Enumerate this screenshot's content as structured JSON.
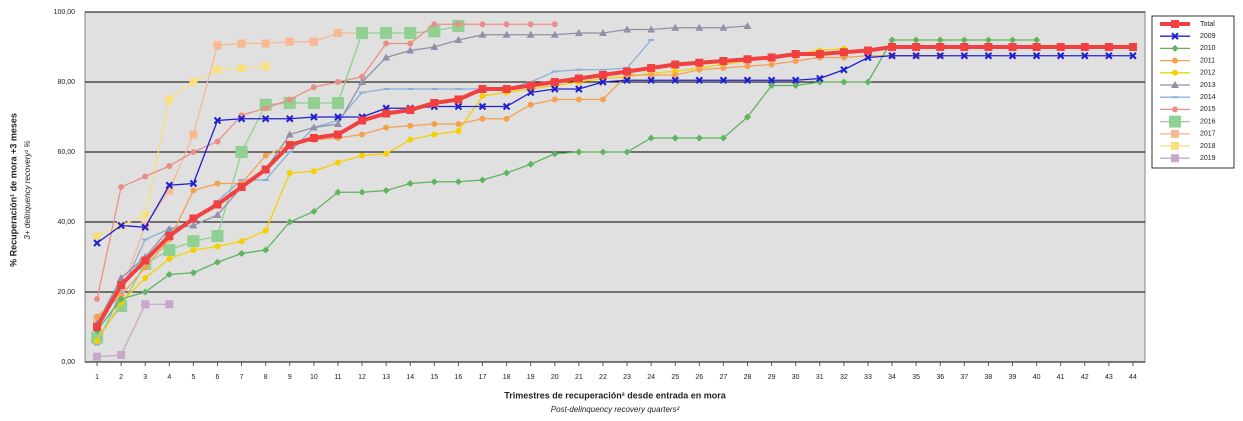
{
  "chart_data": {
    "type": "line",
    "y_label": "% Recuperación¹ de mora +3 meses",
    "y_sublabel": "3+ delinquency recovery¹ %",
    "x_label": "Trimestres de recuperación² desde entrada en mora",
    "x_sublabel": "Post-delinquency recovery quarters²",
    "x": [
      1,
      2,
      3,
      4,
      5,
      6,
      7,
      8,
      9,
      10,
      11,
      12,
      13,
      14,
      15,
      16,
      17,
      18,
      19,
      20,
      21,
      22,
      23,
      24,
      25,
      26,
      27,
      28,
      29,
      30,
      31,
      32,
      33,
      34,
      35,
      36,
      37,
      38,
      39,
      40,
      41,
      42,
      43,
      44
    ],
    "xlim": [
      0.5,
      44.5
    ],
    "xticks": [
      1,
      2,
      3,
      4,
      5,
      6,
      7,
      8,
      9,
      10,
      11,
      12,
      13,
      14,
      15,
      16,
      17,
      18,
      19,
      20,
      21,
      22,
      23,
      24,
      25,
      26,
      27,
      28,
      29,
      30,
      31,
      32,
      33,
      34,
      35,
      36,
      37,
      38,
      39,
      40,
      41,
      42,
      43,
      44
    ],
    "ylim": [
      0,
      100
    ],
    "yticks": [
      {
        "value": 0,
        "label": "0,00"
      },
      {
        "value": 20,
        "label": "20,00"
      },
      {
        "value": 40,
        "label": "40,00"
      },
      {
        "value": 60,
        "label": "60,00"
      },
      {
        "value": 80,
        "label": "80,00"
      },
      {
        "value": 100,
        "label": "100,00"
      }
    ],
    "grid": true,
    "legend": "right",
    "series": [
      {
        "name": "Total",
        "color": "#f04040",
        "marker": "square",
        "values": [
          10,
          22,
          29,
          36,
          41,
          45,
          50,
          55,
          62,
          64,
          65,
          69,
          71,
          72,
          74,
          75,
          78,
          78,
          79,
          80,
          81,
          82,
          83,
          84,
          85,
          85.5,
          86,
          86.5,
          87,
          88,
          88,
          88.5,
          89,
          90,
          90,
          90,
          90,
          90,
          90,
          90,
          90,
          90,
          90,
          90
        ]
      },
      {
        "name": "2009",
        "color": "#1f1fd0",
        "marker": "x",
        "values": [
          34,
          39,
          38.5,
          50.5,
          51,
          69,
          69.5,
          69.5,
          69.5,
          70,
          70,
          70,
          72.5,
          72.5,
          73,
          73,
          73,
          73,
          77,
          78,
          78,
          80,
          80.5,
          80.5,
          80.5,
          80.5,
          80.5,
          80.5,
          80.5,
          80.5,
          81,
          83.5,
          87,
          87.5,
          87.5,
          87.5,
          87.5,
          87.5,
          87.5,
          87.5,
          87.5,
          87.5,
          87.5,
          87.5
        ]
      },
      {
        "name": "2010",
        "color": "#5fb55f",
        "marker": "diamond",
        "values": [
          9,
          18,
          20,
          25,
          25.5,
          28.5,
          31,
          32,
          40,
          43,
          48.5,
          48.5,
          49,
          51,
          51.5,
          51.5,
          52,
          54,
          56.5,
          59.5,
          60,
          60,
          60,
          64,
          64,
          64,
          64,
          70,
          79,
          79,
          80,
          80,
          80,
          92,
          92,
          92,
          92,
          92,
          92,
          92,
          null,
          null,
          null,
          null
        ]
      },
      {
        "name": "2011",
        "color": "#f5a050",
        "marker": "circle",
        "values": [
          13,
          19,
          27,
          35,
          49,
          51,
          51,
          59,
          62,
          63.5,
          64,
          65,
          67,
          67.5,
          68,
          68,
          69.5,
          69.5,
          73.5,
          75,
          75,
          75,
          82,
          82,
          82,
          83.5,
          84,
          84.5,
          85,
          86,
          87,
          87,
          87.5,
          87.5,
          87.5,
          87.5,
          null,
          null,
          null,
          null,
          null,
          null,
          null,
          null
        ]
      },
      {
        "name": "2012",
        "color": "#f5d000",
        "marker": "circle",
        "values": [
          6,
          17,
          24,
          29.5,
          32,
          33,
          34.5,
          37.5,
          54,
          54.5,
          57,
          59,
          59.5,
          63.5,
          65,
          66,
          76,
          77,
          78,
          79,
          80,
          81,
          81.5,
          82.5,
          83,
          84,
          85,
          86,
          87,
          88,
          89,
          89.5,
          null,
          null,
          null,
          null,
          null,
          null,
          null,
          null,
          null,
          null,
          null,
          null
        ]
      },
      {
        "name": "2013",
        "color": "#9090a8",
        "marker": "triangle",
        "values": [
          11,
          24,
          30,
          38,
          39,
          42,
          50,
          55,
          65,
          67,
          68,
          80,
          87,
          89,
          90,
          92,
          93.5,
          93.5,
          93.5,
          93.5,
          94,
          94,
          95,
          95,
          95.5,
          95.5,
          95.5,
          96,
          null,
          null,
          null,
          null,
          null,
          null,
          null,
          null,
          null,
          null,
          null,
          null,
          null,
          null,
          null,
          null
        ]
      },
      {
        "name": "2014",
        "color": "#8ab0d8",
        "marker": "dash",
        "values": [
          5,
          20,
          35,
          38,
          40,
          46,
          52,
          52,
          60,
          67,
          69,
          77,
          78,
          78,
          78,
          78,
          78,
          78,
          80,
          83,
          83.5,
          83.5,
          84,
          92,
          null,
          null,
          null,
          null,
          null,
          null,
          null,
          null,
          null,
          null,
          null,
          null,
          null,
          null,
          null,
          null,
          null,
          null,
          null,
          null
        ]
      },
      {
        "name": "2015",
        "color": "#e89088",
        "marker": "circle",
        "values": [
          18,
          50,
          53,
          56,
          60,
          63,
          70.5,
          72.5,
          75,
          78.5,
          80,
          81.5,
          91,
          91,
          96.5,
          96.5,
          96.5,
          96.5,
          96.5,
          96.5,
          null,
          null,
          null,
          null,
          null,
          null,
          null,
          null,
          null,
          null,
          null,
          null,
          null,
          null,
          null,
          null,
          null,
          null,
          null,
          null,
          null,
          null,
          null,
          null
        ]
      },
      {
        "name": "2016",
        "color": "#90d090",
        "marker": "big-square",
        "values": [
          7,
          16,
          28,
          32,
          34.5,
          36,
          60,
          73.5,
          74,
          74,
          74,
          94,
          94,
          94,
          94.5,
          96,
          null,
          null,
          null,
          null,
          null,
          null,
          null,
          null,
          null,
          null,
          null,
          null,
          null,
          null,
          null,
          null,
          null,
          null,
          null,
          null,
          null,
          null,
          null,
          null,
          null,
          null,
          null,
          null
        ]
      },
      {
        "name": "2017",
        "color": "#f8b890",
        "marker": "square",
        "values": [
          12,
          20,
          39,
          49,
          65,
          90.5,
          91,
          91,
          91.5,
          91.5,
          94,
          94,
          null,
          null,
          null,
          null,
          null,
          null,
          null,
          null,
          null,
          null,
          null,
          null,
          null,
          null,
          null,
          null,
          null,
          null,
          null,
          null,
          null,
          null,
          null,
          null,
          null,
          null,
          null,
          null,
          null,
          null,
          null,
          null
        ]
      },
      {
        "name": "2018",
        "color": "#f8e080",
        "marker": "square",
        "values": [
          36,
          39,
          42,
          75,
          80,
          83.5,
          84,
          84.5,
          null,
          null,
          null,
          null,
          null,
          null,
          null,
          null,
          null,
          null,
          null,
          null,
          null,
          null,
          null,
          null,
          null,
          null,
          null,
          null,
          null,
          null,
          null,
          null,
          null,
          null,
          null,
          null,
          null,
          null,
          null,
          null,
          null,
          null,
          null,
          null
        ]
      },
      {
        "name": "2019",
        "color": "#c8a8c8",
        "marker": "square",
        "values": [
          1.5,
          2,
          16.5,
          16.5,
          null,
          null,
          null,
          null,
          null,
          null,
          null,
          null,
          null,
          null,
          null,
          null,
          null,
          null,
          null,
          null,
          null,
          null,
          null,
          null,
          null,
          null,
          null,
          null,
          null,
          null,
          null,
          null,
          null,
          null,
          null,
          null,
          null,
          null,
          null,
          null,
          null,
          null,
          null,
          null
        ]
      }
    ]
  }
}
